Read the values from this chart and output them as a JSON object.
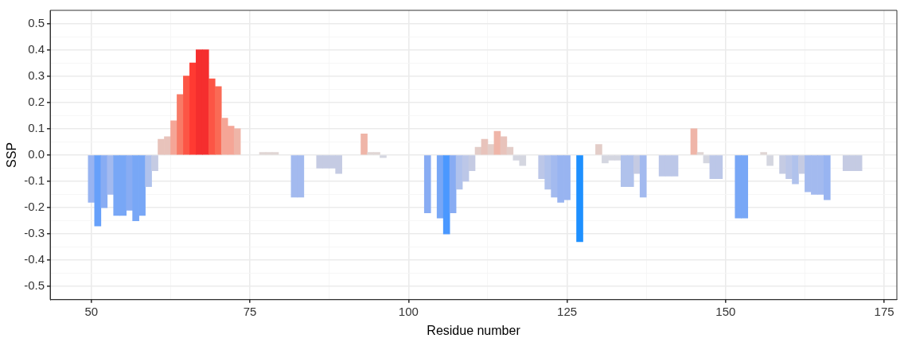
{
  "chart_data": {
    "type": "bar",
    "xlabel": "Residue number",
    "ylabel": "SSP",
    "x": [
      50,
      51,
      52,
      53,
      54,
      55,
      56,
      57,
      58,
      59,
      60,
      61,
      62,
      63,
      64,
      65,
      66,
      67,
      68,
      69,
      70,
      71,
      72,
      73,
      77,
      78,
      79,
      82,
      83,
      86,
      87,
      88,
      89,
      93,
      94,
      95,
      96,
      103,
      105,
      106,
      107,
      108,
      109,
      110,
      111,
      112,
      113,
      114,
      115,
      116,
      117,
      118,
      121,
      122,
      123,
      124,
      125,
      127,
      130,
      131,
      132,
      133,
      134,
      135,
      136,
      137,
      140,
      141,
      142,
      145,
      146,
      147,
      148,
      149,
      152,
      153,
      156,
      157,
      159,
      160,
      161,
      162,
      163,
      164,
      165,
      166,
      169,
      170,
      171
    ],
    "values": [
      -0.18,
      -0.27,
      -0.2,
      -0.15,
      -0.23,
      -0.23,
      -0.21,
      -0.25,
      -0.23,
      -0.12,
      -0.06,
      0.06,
      0.07,
      0.13,
      0.23,
      0.3,
      0.35,
      0.4,
      0.4,
      0.29,
      0.26,
      0.14,
      0.11,
      0.1,
      0.01,
      0.01,
      0.01,
      -0.16,
      -0.16,
      -0.05,
      -0.05,
      -0.05,
      -0.07,
      0.08,
      0.01,
      0.01,
      -0.01,
      -0.22,
      -0.24,
      -0.3,
      -0.22,
      -0.13,
      -0.1,
      -0.06,
      0.03,
      0.06,
      0.04,
      0.09,
      0.07,
      0.03,
      -0.02,
      -0.04,
      -0.09,
      -0.13,
      -0.16,
      -0.18,
      -0.17,
      -0.33,
      0.04,
      -0.03,
      -0.02,
      -0.02,
      -0.12,
      -0.12,
      -0.07,
      -0.16,
      -0.08,
      -0.08,
      -0.08,
      0.1,
      0.01,
      -0.03,
      -0.09,
      -0.09,
      -0.24,
      -0.24,
      0.01,
      -0.04,
      -0.07,
      -0.09,
      -0.11,
      -0.07,
      -0.14,
      -0.15,
      -0.15,
      -0.17,
      -0.06,
      -0.06,
      -0.06
    ],
    "colors": [
      "#98b4f1",
      "#66a0fa",
      "#88acf3",
      "#a3baef",
      "#78a7f6",
      "#78a7f6",
      "#88acf3",
      "#78a7f6",
      "#78a7f6",
      "#b0c2ec",
      "#c5cbe3",
      "#e8c3bb",
      "#e8c3bb",
      "#f5a596",
      "#f87a66",
      "#fc5545",
      "#ff3a32",
      "#f52e2e",
      "#f52e2e",
      "#fc5545",
      "#fa6a55",
      "#f5a596",
      "#f5a596",
      "#efb5a8",
      "#e0d6d4",
      "#e0d6d4",
      "#e0d6d4",
      "#a3baef",
      "#a3baef",
      "#c5cbe3",
      "#c5cbe3",
      "#c5cbe3",
      "#c5cbe3",
      "#efb5a8",
      "#e0d6d4",
      "#e0d6d4",
      "#d4d6e0",
      "#88acf3",
      "#78a7f6",
      "#4a98ff",
      "#88acf3",
      "#b0c2ec",
      "#bcc7e8",
      "#c5cbe3",
      "#e3cdc8",
      "#e8c3bb",
      "#e3cdc8",
      "#efb5a8",
      "#e8c3bb",
      "#e3cdc8",
      "#d4d6e0",
      "#d4d6e0",
      "#bcc7e8",
      "#b0c2ec",
      "#a3baef",
      "#98b4f1",
      "#98b4f1",
      "#1e90ff",
      "#e3cdc8",
      "#d4d6e0",
      "#d4d6e0",
      "#d4d6e0",
      "#b0c2ec",
      "#b0c2ec",
      "#c5cbe3",
      "#a3baef",
      "#bcc7e8",
      "#bcc7e8",
      "#bcc7e8",
      "#efb5a8",
      "#e0d6d4",
      "#d4d6e0",
      "#bcc7e8",
      "#bcc7e8",
      "#78a7f6",
      "#78a7f6",
      "#e0d6d4",
      "#d4d6e0",
      "#c5cbe3",
      "#bcc7e8",
      "#b0c2ec",
      "#c5cbe3",
      "#a3baef",
      "#a3baef",
      "#a3baef",
      "#98b4f1",
      "#c5cbe3",
      "#c5cbe3",
      "#c5cbe3"
    ],
    "xlim": [
      43.5,
      177
    ],
    "xticks": [
      50,
      {
        "value": 62.5,
        "label": null
      },
      75,
      {
        "value": 87.5,
        "label": null
      },
      100,
      {
        "value": 112.5,
        "label": null
      },
      125,
      {
        "value": 137.5,
        "label": null
      },
      150,
      {
        "value": 162.5,
        "label": null
      },
      175
    ],
    "ylim": [
      -0.55,
      0.55
    ],
    "yticks": [
      -0.5,
      {
        "value": -0.45,
        "label": null
      },
      -0.4,
      {
        "value": -0.35,
        "label": null
      },
      -0.3,
      {
        "value": -0.25,
        "label": null
      },
      -0.2,
      {
        "value": -0.15,
        "label": null
      },
      -0.1,
      {
        "value": -0.05,
        "label": null
      },
      {
        "value": 0,
        "label": "0.0"
      },
      {
        "value": 0.05,
        "label": null
      },
      0.1,
      {
        "value": 0.15,
        "label": null
      },
      0.2,
      {
        "value": 0.25,
        "label": null
      },
      0.3,
      {
        "value": 0.35,
        "label": null
      },
      0.4,
      {
        "value": 0.45,
        "label": null
      },
      0.5
    ],
    "grid": true,
    "legend": false
  }
}
